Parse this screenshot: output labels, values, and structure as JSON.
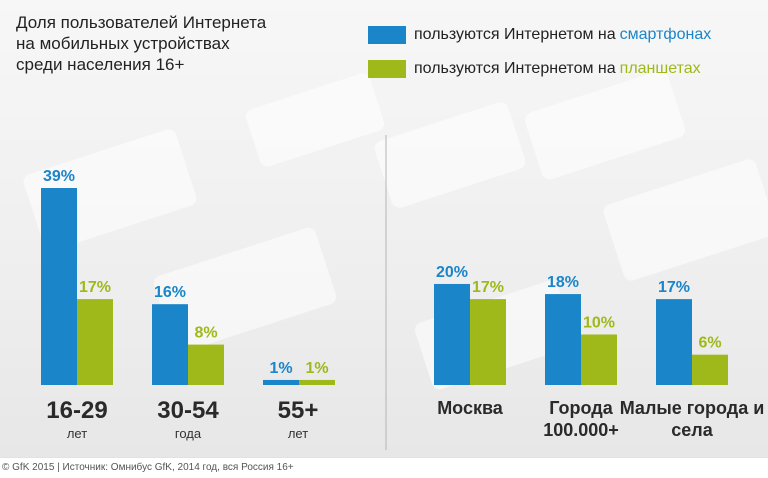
{
  "title_lines": [
    "Доля пользователей Интернета",
    "на мобильных устройствах",
    "среди населения 16+"
  ],
  "legend": [
    {
      "prefix": "пользуются Интернетом на",
      "highlight": "смартфонах",
      "color": "#1a85c8"
    },
    {
      "prefix": "пользуются Интернетом на",
      "highlight": "планшетах",
      "color": "#9fb81a"
    }
  ],
  "colors": {
    "smartphones": "#1a85c8",
    "tablets": "#9fb81a",
    "label_dark": "#2a2a2a",
    "label_sub": "#333333"
  },
  "chart_data": [
    {
      "type": "bar",
      "title": "",
      "categories": [
        {
          "label": "16-29",
          "sublabel": "лет"
        },
        {
          "label": "30-54",
          "sublabel": "года"
        },
        {
          "label": "55+",
          "sublabel": "лет"
        }
      ],
      "series": [
        {
          "name": "пользуются Интернетом на смартфонах",
          "values": [
            39,
            16,
            1
          ],
          "labels": [
            "39%",
            "16%",
            "1%"
          ]
        },
        {
          "name": "пользуются Интернетом на планшетах",
          "values": [
            17,
            8,
            1
          ],
          "labels": [
            "17%",
            "8%",
            "1%"
          ]
        }
      ],
      "ylim": [
        0,
        39
      ]
    },
    {
      "type": "bar",
      "title": "",
      "categories": [
        {
          "label": "Москва",
          "sublabel": ""
        },
        {
          "label": "Города 100.000+",
          "sublabel": ""
        },
        {
          "label": "Малые города и села",
          "sublabel": ""
        }
      ],
      "series": [
        {
          "name": "пользуются Интернетом на смартфонах",
          "values": [
            20,
            18,
            17
          ],
          "labels": [
            "20%",
            "18%",
            "17%"
          ]
        },
        {
          "name": "пользуются Интернетом на планшетах",
          "values": [
            17,
            10,
            6
          ],
          "labels": [
            "17%",
            "10%",
            "6%"
          ]
        }
      ],
      "ylim": [
        0,
        39
      ]
    }
  ],
  "footer": "© GfK 2015 | Источник: Омнибус GfK, 2014 год, вся Россия 16+"
}
